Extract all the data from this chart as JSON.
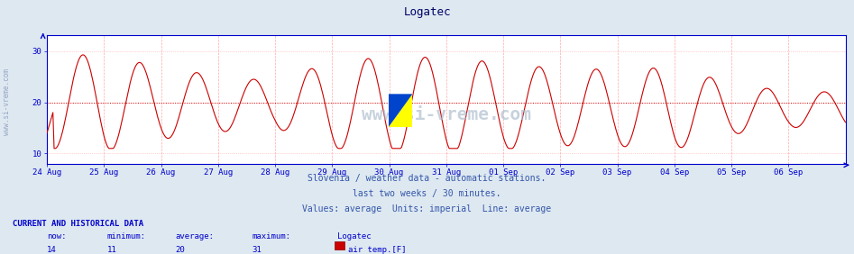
{
  "title": "Logatec",
  "subtitle_lines": [
    "Slovenia / weather data - automatic stations.",
    "last two weeks / 30 minutes.",
    "Values: average  Units: imperial  Line: average"
  ],
  "bottom_label1": "CURRENT AND HISTORICAL DATA",
  "bottom_label2_cols": [
    "now:",
    "minimum:",
    "average:",
    "maximum:",
    "Logatec"
  ],
  "bottom_label3_cols": [
    "14",
    "11",
    "20",
    "31"
  ],
  "legend_label": "air temp.[F]",
  "x_labels": [
    "24 Aug",
    "25 Aug",
    "26 Aug",
    "27 Aug",
    "28 Aug",
    "29 Aug",
    "30 Aug",
    "31 Aug",
    "01 Sep",
    "02 Sep",
    "03 Sep",
    "04 Sep",
    "05 Sep",
    "06 Sep"
  ],
  "y_ticks": [
    10,
    20,
    30
  ],
  "ylim": [
    8,
    33
  ],
  "average_line_y": 20,
  "line_color": "#cc0000",
  "grid_color_v": "#ffaaaa",
  "grid_color_h": "#ffaaaa",
  "avg_line_color": "#cc0000",
  "axis_color": "#0000cc",
  "bg_color": "#dde8f0",
  "plot_bg_color": "#ffffff",
  "title_color": "#000066",
  "subtitle_color": "#3355aa",
  "bottom_text_color": "#0000cc",
  "n_days": 14,
  "pts_per_day": 48
}
